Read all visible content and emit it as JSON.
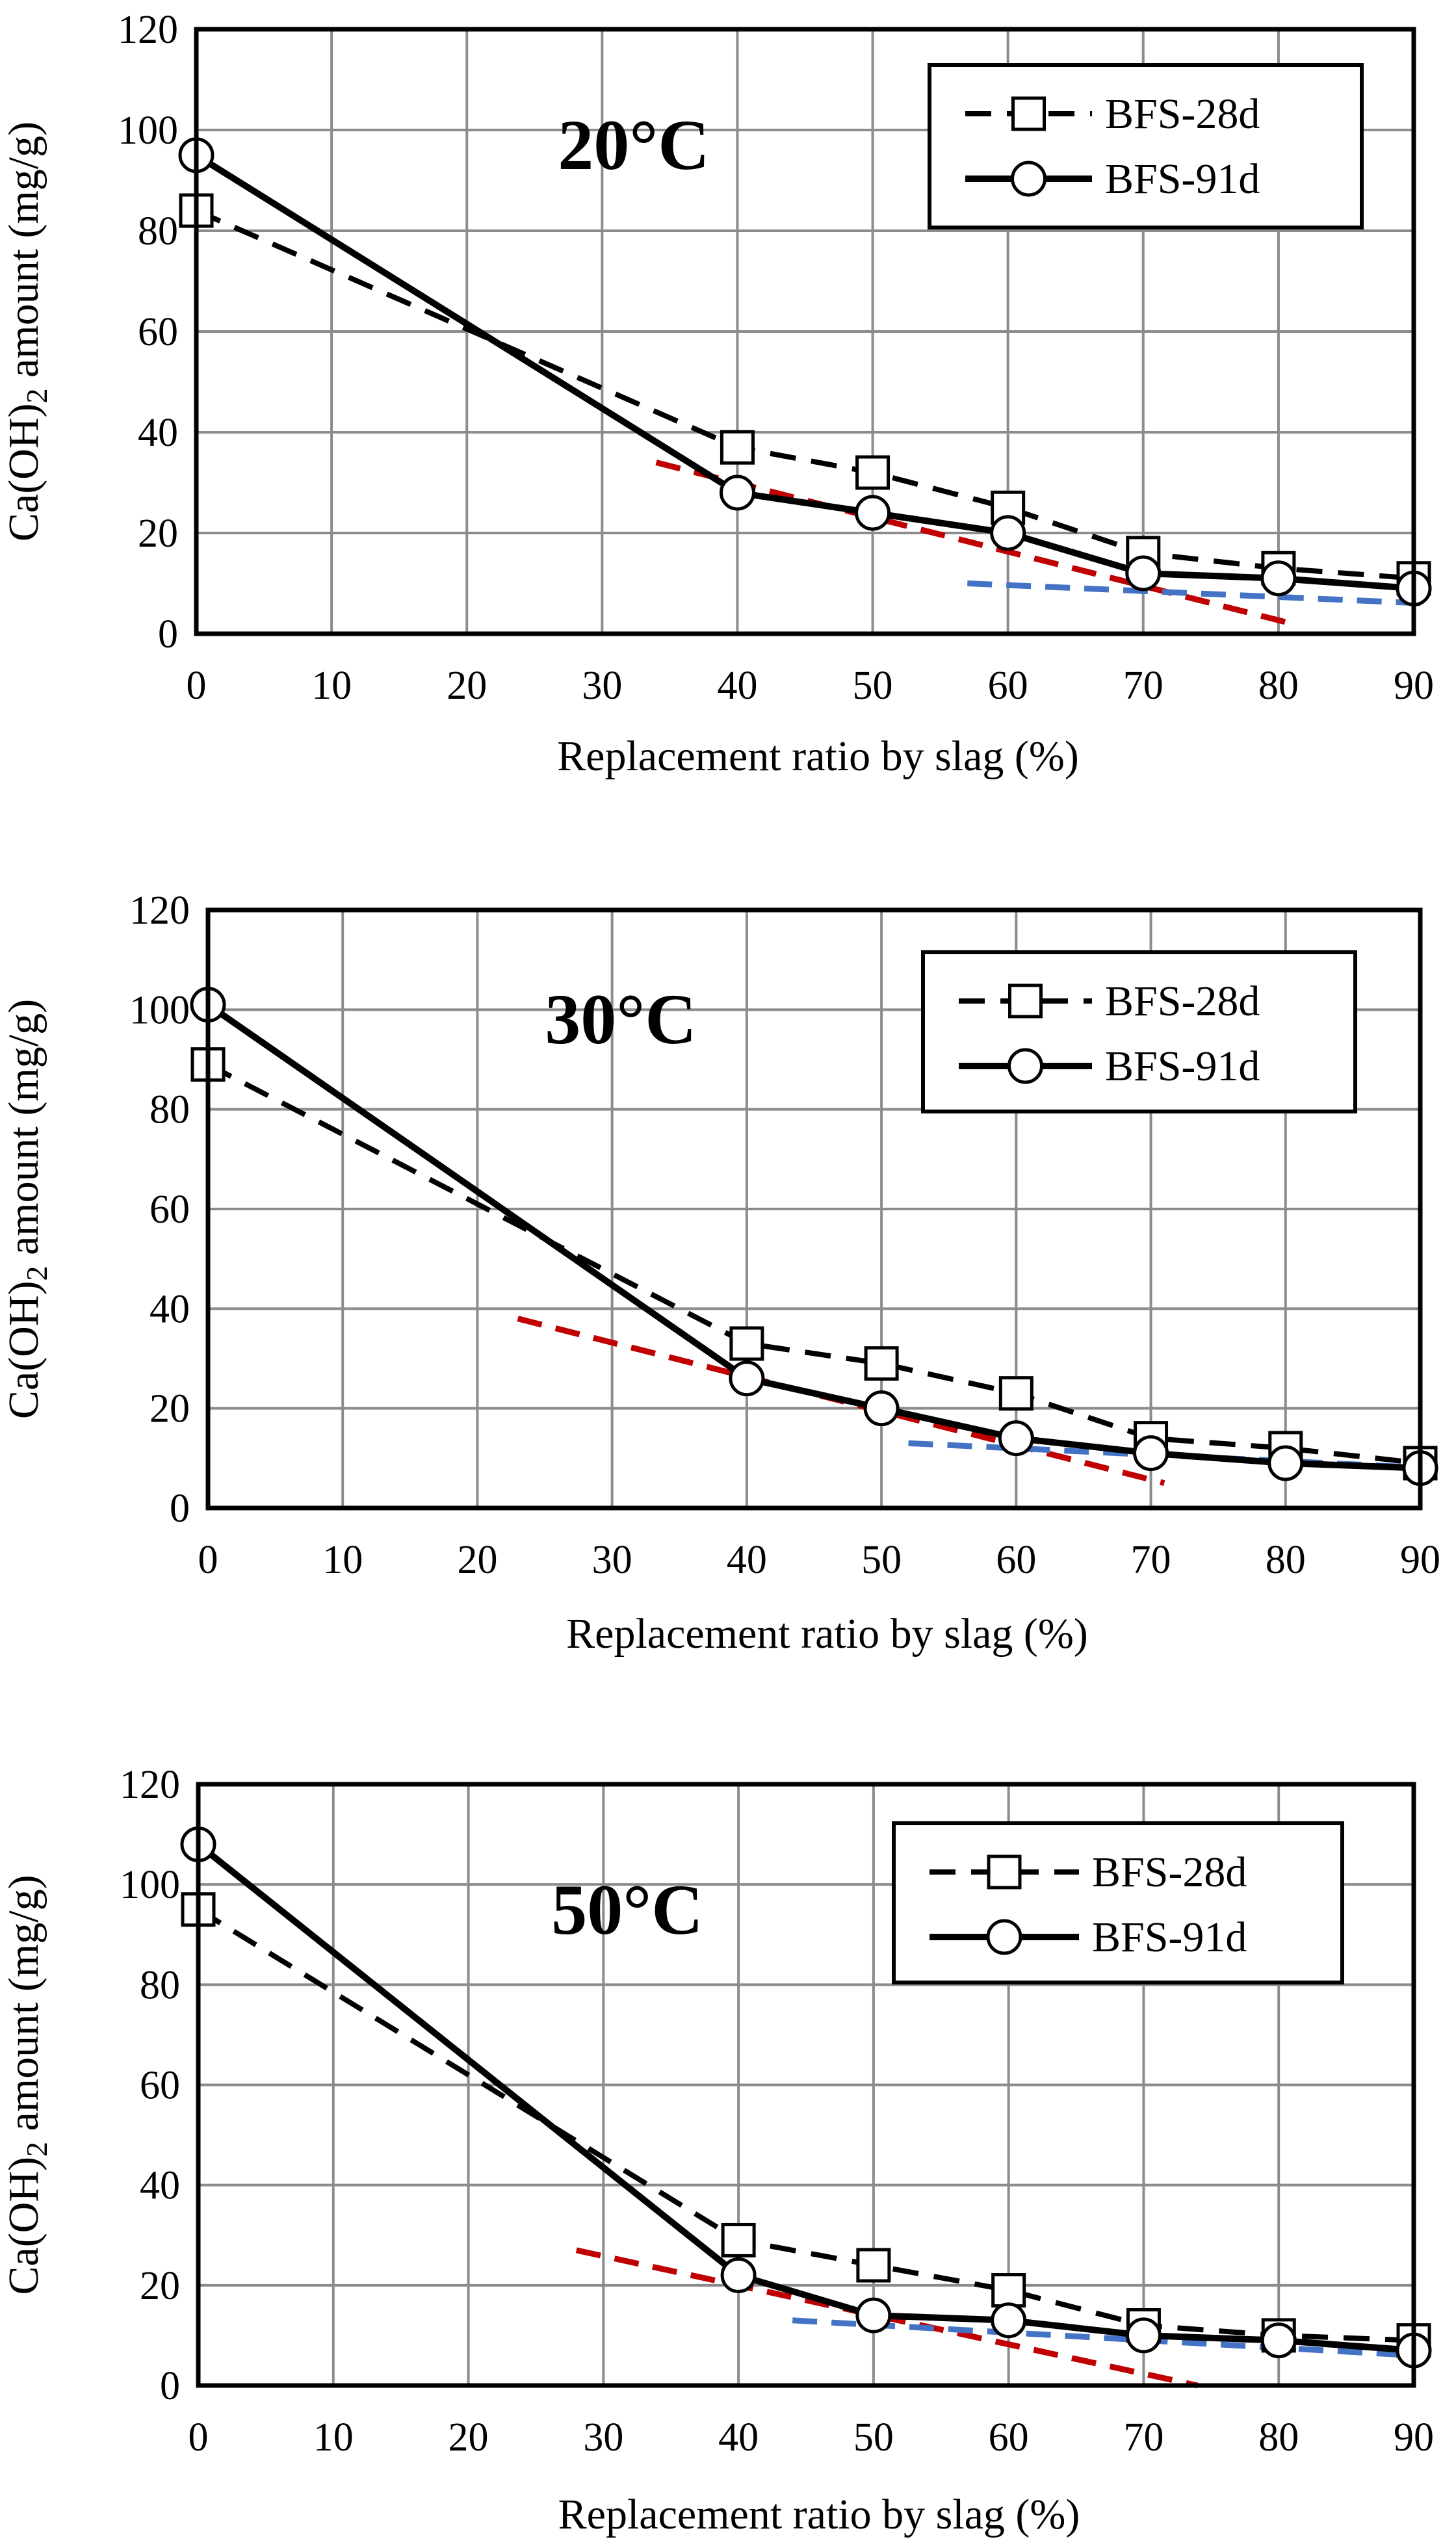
{
  "chart_data": [
    {
      "type": "line",
      "title": "20°C",
      "xlabel": "Replacement ratio by slag (%)",
      "ylabel_main": "Ca(OH)",
      "ylabel_sub": "2",
      "ylabel_tail": " amount (mg/g)",
      "xlim": [
        0,
        90
      ],
      "ylim": [
        0,
        120
      ],
      "x_ticks": [
        0,
        10,
        20,
        30,
        40,
        50,
        60,
        70,
        80,
        90
      ],
      "y_ticks": [
        0,
        20,
        40,
        60,
        80,
        100,
        120
      ],
      "grid": true,
      "legend_position": "top-right",
      "series": [
        {
          "name": "BFS-28d",
          "style": "dashed",
          "marker": "square",
          "x": [
            0,
            40,
            50,
            60,
            70,
            80,
            90
          ],
          "values": [
            84,
            37,
            32,
            25,
            16,
            13,
            11
          ]
        },
        {
          "name": "BFS-91d",
          "style": "solid",
          "marker": "circle",
          "x": [
            0,
            40,
            50,
            60,
            70,
            80,
            90
          ],
          "values": [
            95,
            28,
            24,
            20,
            12,
            11,
            9
          ]
        }
      ],
      "trend_lines": [
        {
          "color": "#c00000",
          "x": [
            34,
            81
          ],
          "values": [
            34,
            2
          ]
        },
        {
          "color": "#4472c4",
          "x": [
            57,
            91
          ],
          "values": [
            10,
            6
          ]
        }
      ]
    },
    {
      "type": "line",
      "title": "30°C",
      "xlabel": "Replacement ratio by slag (%)",
      "ylabel_main": "Ca(OH)",
      "ylabel_sub": "2",
      "ylabel_tail": " amount (mg/g)",
      "xlim": [
        0,
        90
      ],
      "ylim": [
        0,
        120
      ],
      "x_ticks": [
        0,
        10,
        20,
        30,
        40,
        50,
        60,
        70,
        80,
        90
      ],
      "y_ticks": [
        0,
        20,
        40,
        60,
        80,
        100,
        120
      ],
      "grid": true,
      "legend_position": "top-right",
      "series": [
        {
          "name": "BFS-28d",
          "style": "dashed",
          "marker": "square",
          "x": [
            0,
            40,
            50,
            60,
            70,
            80,
            90
          ],
          "values": [
            89,
            33,
            29,
            23,
            14,
            12,
            9
          ]
        },
        {
          "name": "BFS-91d",
          "style": "solid",
          "marker": "circle",
          "x": [
            0,
            40,
            50,
            60,
            70,
            80,
            90
          ],
          "values": [
            101,
            26,
            20,
            14,
            11,
            9,
            8
          ]
        }
      ],
      "trend_lines": [
        {
          "color": "#c00000",
          "x": [
            23,
            71
          ],
          "values": [
            38,
            5
          ]
        },
        {
          "color": "#4472c4",
          "x": [
            52,
            91
          ],
          "values": [
            13,
            8
          ]
        }
      ]
    },
    {
      "type": "line",
      "title": "50°C",
      "xlabel": "Replacement ratio by slag (%)",
      "ylabel_main": "Ca(OH)",
      "ylabel_sub": "2",
      "ylabel_tail": " amount (mg/g)",
      "xlim": [
        0,
        90
      ],
      "ylim": [
        0,
        120
      ],
      "x_ticks": [
        0,
        10,
        20,
        30,
        40,
        50,
        60,
        70,
        80,
        90
      ],
      "y_ticks": [
        0,
        20,
        40,
        60,
        80,
        100,
        120
      ],
      "grid": true,
      "legend_position": "top-right",
      "series": [
        {
          "name": "BFS-28d",
          "style": "dashed",
          "marker": "square",
          "x": [
            0,
            40,
            50,
            60,
            70,
            80,
            90
          ],
          "values": [
            95,
            29,
            24,
            19,
            12,
            10,
            9
          ]
        },
        {
          "name": "BFS-91d",
          "style": "solid",
          "marker": "circle",
          "x": [
            0,
            40,
            50,
            60,
            70,
            80,
            90
          ],
          "values": [
            108,
            22,
            14,
            13,
            10,
            9,
            7
          ]
        }
      ],
      "trend_lines": [
        {
          "color": "#c00000",
          "x": [
            28,
            74
          ],
          "values": [
            27,
            0
          ]
        },
        {
          "color": "#4472c4",
          "x": [
            44,
            90
          ],
          "values": [
            13,
            6
          ]
        }
      ]
    }
  ]
}
